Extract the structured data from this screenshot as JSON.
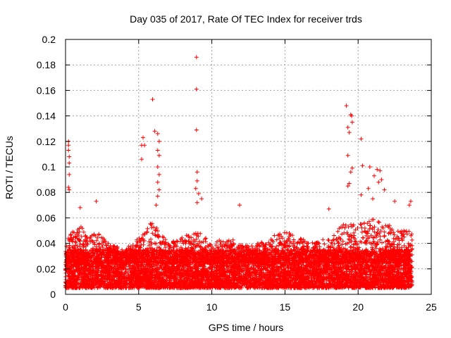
{
  "chart_data": {
    "type": "scatter",
    "title": "Day 035 of 2017, Rate Of TEC Index for receiver trds",
    "xlabel": "GPS time / hours",
    "ylabel": "ROTI / TECUs",
    "xlim": [
      0,
      25
    ],
    "ylim": [
      0,
      0.2
    ],
    "xticks": [
      0,
      5,
      10,
      15,
      20,
      25
    ],
    "xtick_labels": [
      "0",
      "5",
      "10",
      "15",
      "20",
      "25"
    ],
    "yticks": [
      0,
      0.02,
      0.04,
      0.06,
      0.08,
      0.1,
      0.12,
      0.14,
      0.16,
      0.18,
      0.2
    ],
    "ytick_labels": [
      "0",
      "0.02",
      "0.04",
      "0.06",
      "0.08",
      "0.1",
      "0.12",
      "0.14",
      "0.16",
      "0.18",
      "0.2"
    ],
    "grid": true,
    "marker": "plus",
    "color": "#ff0000",
    "x_data_range": [
      0,
      23.7
    ],
    "background_band": [
      0.005,
      0.035
    ],
    "envelope": [
      [
        0,
        0.045
      ],
      [
        0.5,
        0.05
      ],
      [
        1,
        0.055
      ],
      [
        1.5,
        0.045
      ],
      [
        2,
        0.05
      ],
      [
        3,
        0.04
      ],
      [
        4,
        0.035
      ],
      [
        5,
        0.045
      ],
      [
        5.5,
        0.05
      ],
      [
        6,
        0.06
      ],
      [
        6.5,
        0.05
      ],
      [
        7,
        0.04
      ],
      [
        8,
        0.045
      ],
      [
        9,
        0.05
      ],
      [
        10,
        0.04
      ],
      [
        11,
        0.045
      ],
      [
        12,
        0.04
      ],
      [
        13,
        0.04
      ],
      [
        14,
        0.045
      ],
      [
        15,
        0.05
      ],
      [
        16,
        0.045
      ],
      [
        17,
        0.04
      ],
      [
        18,
        0.045
      ],
      [
        19,
        0.055
      ],
      [
        20,
        0.055
      ],
      [
        21,
        0.06
      ],
      [
        22,
        0.055
      ],
      [
        23,
        0.05
      ],
      [
        23.7,
        0.05
      ]
    ],
    "notable_points": [
      {
        "x": 0.2,
        "y": 0.12
      },
      {
        "x": 0.2,
        "y": 0.117
      },
      {
        "x": 0.2,
        "y": 0.113
      },
      {
        "x": 0.25,
        "y": 0.108
      },
      {
        "x": 0.25,
        "y": 0.103
      },
      {
        "x": 0.25,
        "y": 0.094
      },
      {
        "x": 0.2,
        "y": 0.084
      },
      {
        "x": 0.25,
        "y": 0.082
      },
      {
        "x": 5.3,
        "y": 0.123
      },
      {
        "x": 5.4,
        "y": 0.117
      },
      {
        "x": 5.2,
        "y": 0.117
      },
      {
        "x": 5.2,
        "y": 0.106
      },
      {
        "x": 5.95,
        "y": 0.153
      },
      {
        "x": 6.1,
        "y": 0.128
      },
      {
        "x": 6.3,
        "y": 0.126
      },
      {
        "x": 6.4,
        "y": 0.12
      },
      {
        "x": 6.3,
        "y": 0.113
      },
      {
        "x": 6.4,
        "y": 0.109
      },
      {
        "x": 6.3,
        "y": 0.1
      },
      {
        "x": 6.4,
        "y": 0.094
      },
      {
        "x": 6.3,
        "y": 0.088
      },
      {
        "x": 6.4,
        "y": 0.082
      },
      {
        "x": 6.3,
        "y": 0.077
      },
      {
        "x": 6.2,
        "y": 0.07
      },
      {
        "x": 8.95,
        "y": 0.186
      },
      {
        "x": 8.95,
        "y": 0.161
      },
      {
        "x": 8.95,
        "y": 0.129
      },
      {
        "x": 9.0,
        "y": 0.096
      },
      {
        "x": 9.0,
        "y": 0.089
      },
      {
        "x": 8.9,
        "y": 0.083
      },
      {
        "x": 9.1,
        "y": 0.079
      },
      {
        "x": 9.3,
        "y": 0.075
      },
      {
        "x": 9.0,
        "y": 0.072
      },
      {
        "x": 11.9,
        "y": 0.07
      },
      {
        "x": 19.2,
        "y": 0.148
      },
      {
        "x": 19.3,
        "y": 0.131
      },
      {
        "x": 19.5,
        "y": 0.141
      },
      {
        "x": 19.55,
        "y": 0.14
      },
      {
        "x": 19.6,
        "y": 0.135
      },
      {
        "x": 19.4,
        "y": 0.127
      },
      {
        "x": 20.2,
        "y": 0.122
      },
      {
        "x": 19.3,
        "y": 0.109
      },
      {
        "x": 19.6,
        "y": 0.099
      },
      {
        "x": 19.5,
        "y": 0.096
      },
      {
        "x": 19.4,
        "y": 0.087
      },
      {
        "x": 19.3,
        "y": 0.085
      },
      {
        "x": 20.3,
        "y": 0.101
      },
      {
        "x": 20.8,
        "y": 0.1
      },
      {
        "x": 21.3,
        "y": 0.098
      },
      {
        "x": 21.5,
        "y": 0.097
      },
      {
        "x": 21.1,
        "y": 0.093
      },
      {
        "x": 21.6,
        "y": 0.09
      },
      {
        "x": 21.4,
        "y": 0.088
      },
      {
        "x": 20.7,
        "y": 0.083
      },
      {
        "x": 21.8,
        "y": 0.082
      },
      {
        "x": 20.2,
        "y": 0.078
      },
      {
        "x": 21.0,
        "y": 0.075
      },
      {
        "x": 22.5,
        "y": 0.073
      },
      {
        "x": 23.6,
        "y": 0.073
      },
      {
        "x": 23.5,
        "y": 0.07
      },
      {
        "x": 18.0,
        "y": 0.067
      },
      {
        "x": 1.0,
        "y": 0.068
      },
      {
        "x": 2.1,
        "y": 0.073
      }
    ]
  }
}
